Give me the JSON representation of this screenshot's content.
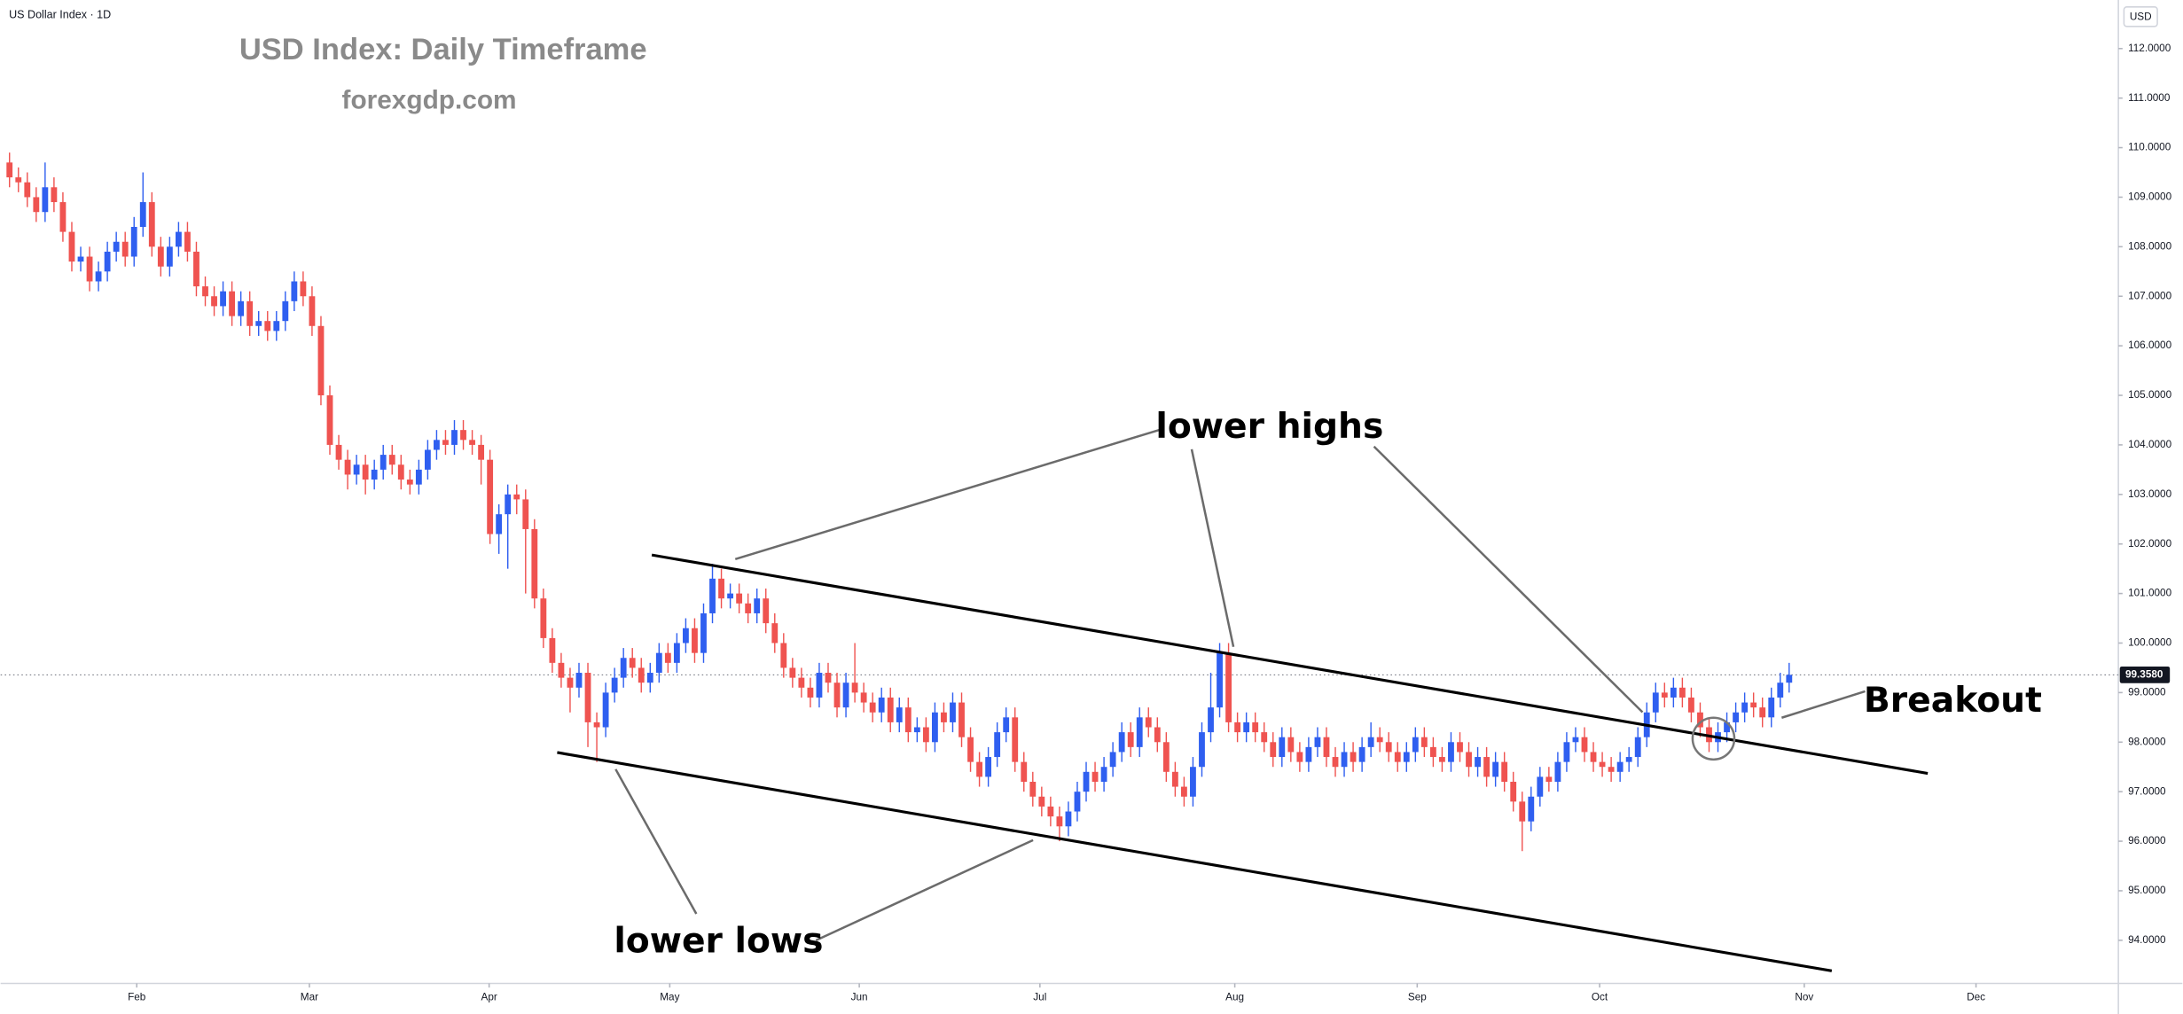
{
  "chart_data": {
    "type": "candlestick",
    "symbol": "US Dollar Index · 1D",
    "title": "USD Index: Daily Timeframe",
    "subtitle": "forexgdp.com",
    "currency": "USD",
    "annotations": [
      "lower highs",
      "lower lows",
      "Breakout"
    ],
    "up_color": "#2f5ff0",
    "down_color": "#ef5350",
    "xlim": [
      -1,
      237
    ],
    "xticks": [
      {
        "value": 14.3,
        "label": "Feb"
      },
      {
        "value": 33.7,
        "label": "Mar"
      },
      {
        "value": 53.9,
        "label": "Apr"
      },
      {
        "value": 74.2,
        "label": "May"
      },
      {
        "value": 95.5,
        "label": "Jun"
      },
      {
        "value": 115.8,
        "label": "Jul"
      },
      {
        "value": 137.7,
        "label": "Aug"
      },
      {
        "value": 158.2,
        "label": "Sep"
      },
      {
        "value": 178.7,
        "label": "Oct"
      },
      {
        "value": 201.7,
        "label": "Nov"
      },
      {
        "value": 221.0,
        "label": "Dec"
      }
    ],
    "ylim": [
      93.13,
      112.98
    ],
    "yticks": [
      {
        "value": 94,
        "label": "94.0000"
      },
      {
        "value": 95,
        "label": "95.0000"
      },
      {
        "value": 96,
        "label": "96.0000"
      },
      {
        "value": 97,
        "label": "97.0000"
      },
      {
        "value": 98,
        "label": "98.0000"
      },
      {
        "value": 99,
        "label": "99.0000"
      },
      {
        "value": 100,
        "label": "100.0000"
      },
      {
        "value": 101,
        "label": "101.0000"
      },
      {
        "value": 102,
        "label": "102.0000"
      },
      {
        "value": 103,
        "label": "103.0000"
      },
      {
        "value": 104,
        "label": "104.0000"
      },
      {
        "value": 105,
        "label": "105.0000"
      },
      {
        "value": 106,
        "label": "106.0000"
      },
      {
        "value": 107,
        "label": "107.0000"
      },
      {
        "value": 108,
        "label": "108.0000"
      },
      {
        "value": 109,
        "label": "109.0000"
      },
      {
        "value": 110,
        "label": "110.0000"
      },
      {
        "value": 111,
        "label": "111.0000"
      },
      {
        "value": 112,
        "label": "112.0000"
      }
    ],
    "last_price": {
      "value": 99.358,
      "label": "99.3580"
    },
    "open": [
      109.7,
      109.4,
      109.3,
      109.0,
      108.7,
      109.2,
      108.9,
      108.3,
      107.7,
      107.8,
      107.3,
      107.5,
      107.9,
      108.1,
      107.8,
      108.4,
      108.9,
      108.0,
      107.6,
      108.0,
      108.3,
      107.9,
      107.2,
      107.0,
      106.8,
      107.1,
      106.6,
      106.9,
      106.4,
      106.5,
      106.3,
      106.5,
      106.9,
      107.3,
      107.0,
      106.4,
      105.0,
      104.0,
      103.7,
      103.4,
      103.6,
      103.3,
      103.5,
      103.8,
      103.6,
      103.3,
      103.2,
      103.5,
      103.9,
      104.1,
      104.0,
      104.3,
      104.1,
      104.0,
      103.7,
      102.2,
      102.6,
      103.0,
      102.9,
      102.3,
      100.9,
      100.1,
      99.6,
      99.3,
      99.1,
      99.4,
      98.4,
      98.3,
      99.0,
      99.3,
      99.7,
      99.5,
      99.2,
      99.4,
      99.8,
      99.6,
      100.0,
      100.3,
      99.8,
      100.6,
      101.3,
      100.9,
      101.0,
      100.8,
      100.6,
      100.9,
      100.4,
      100.0,
      99.5,
      99.3,
      99.1,
      98.9,
      99.4,
      99.2,
      98.7,
      99.2,
      99.0,
      98.8,
      98.6,
      98.9,
      98.4,
      98.7,
      98.2,
      98.3,
      98.0,
      98.6,
      98.4,
      98.8,
      98.1,
      97.6,
      97.3,
      97.7,
      98.2,
      98.5,
      97.6,
      97.2,
      96.9,
      96.7,
      96.5,
      96.3,
      96.6,
      97.0,
      97.4,
      97.2,
      97.5,
      97.8,
      98.2,
      97.9,
      98.5,
      98.3,
      98.0,
      97.4,
      97.1,
      96.9,
      97.5,
      98.2,
      98.7,
      99.8,
      98.4,
      98.2,
      98.4,
      98.2,
      98.0,
      97.7,
      98.1,
      97.8,
      97.6,
      97.9,
      98.1,
      97.7,
      97.5,
      97.8,
      97.6,
      97.9,
      98.1,
      98.0,
      97.8,
      97.6,
      97.8,
      98.1,
      97.9,
      97.7,
      97.6,
      98.0,
      97.8,
      97.5,
      97.7,
      97.3,
      97.6,
      97.2,
      96.8,
      96.4,
      96.9,
      97.3,
      97.2,
      97.6,
      98.0,
      98.1,
      97.8,
      97.6,
      97.5,
      97.4,
      97.6,
      97.7,
      98.1,
      98.6,
      99.0,
      98.9,
      99.1,
      98.9,
      98.6,
      98.3,
      98.0,
      98.2,
      98.4,
      98.6,
      98.8,
      98.7,
      98.5,
      98.9,
      99.2
    ],
    "high": [
      109.9,
      109.6,
      109.5,
      109.2,
      109.7,
      109.4,
      109.1,
      108.5,
      108.0,
      108.0,
      107.7,
      108.1,
      108.3,
      108.3,
      108.6,
      109.5,
      109.1,
      108.2,
      108.2,
      108.5,
      108.5,
      108.1,
      107.4,
      107.2,
      107.3,
      107.3,
      107.1,
      107.1,
      106.7,
      106.7,
      106.7,
      107.1,
      107.5,
      107.5,
      107.2,
      106.6,
      105.2,
      104.2,
      103.9,
      103.8,
      103.8,
      103.7,
      104.0,
      104.0,
      103.8,
      103.5,
      103.7,
      104.1,
      104.3,
      104.3,
      104.5,
      104.5,
      104.3,
      104.2,
      103.9,
      102.8,
      103.2,
      103.2,
      103.1,
      102.5,
      101.1,
      100.3,
      99.8,
      99.5,
      99.6,
      99.6,
      98.6,
      99.2,
      99.5,
      99.9,
      99.9,
      99.7,
      99.6,
      100.0,
      100.0,
      100.2,
      100.5,
      100.5,
      100.8,
      101.6,
      101.5,
      101.2,
      101.2,
      101.0,
      101.1,
      101.1,
      100.6,
      100.2,
      99.7,
      99.5,
      99.3,
      99.6,
      99.6,
      99.4,
      99.4,
      100.0,
      99.2,
      99.0,
      99.1,
      99.1,
      98.9,
      98.9,
      98.5,
      98.5,
      98.8,
      98.8,
      99.0,
      99.0,
      98.3,
      97.8,
      97.9,
      98.4,
      98.7,
      98.7,
      97.8,
      97.4,
      97.1,
      96.9,
      96.7,
      96.8,
      97.2,
      97.6,
      97.6,
      97.7,
      98.0,
      98.4,
      98.4,
      98.7,
      98.7,
      98.5,
      98.2,
      97.6,
      97.3,
      97.7,
      98.4,
      99.4,
      100.0,
      100.0,
      98.6,
      98.6,
      98.6,
      98.4,
      98.2,
      98.3,
      98.3,
      98.0,
      98.1,
      98.3,
      98.3,
      97.9,
      98.0,
      98.0,
      98.1,
      98.4,
      98.3,
      98.2,
      98.0,
      98.0,
      98.3,
      98.3,
      98.1,
      97.9,
      98.2,
      98.2,
      98.0,
      97.9,
      97.9,
      97.8,
      97.8,
      97.4,
      97.0,
      97.1,
      97.5,
      97.5,
      97.8,
      98.2,
      98.3,
      98.3,
      98.0,
      97.8,
      97.7,
      97.8,
      97.9,
      98.3,
      98.8,
      99.2,
      99.2,
      99.3,
      99.3,
      99.1,
      98.8,
      98.5,
      98.4,
      98.6,
      98.8,
      99.0,
      99.0,
      98.9,
      99.1,
      99.4,
      99.6
    ],
    "low": [
      109.2,
      109.1,
      108.8,
      108.5,
      108.5,
      108.7,
      108.1,
      107.5,
      107.5,
      107.1,
      107.1,
      107.3,
      107.7,
      107.6,
      107.6,
      108.2,
      107.8,
      107.4,
      107.4,
      107.8,
      107.7,
      107.0,
      106.8,
      106.6,
      106.6,
      106.4,
      106.4,
      106.2,
      106.2,
      106.1,
      106.1,
      106.3,
      106.7,
      106.8,
      106.2,
      104.8,
      103.8,
      103.5,
      103.1,
      103.2,
      103.0,
      103.1,
      103.3,
      103.4,
      103.1,
      103.0,
      103.0,
      103.3,
      103.7,
      103.8,
      103.8,
      103.9,
      103.8,
      103.2,
      102.0,
      101.8,
      101.5,
      102.6,
      101.0,
      100.7,
      99.9,
      99.4,
      99.1,
      98.6,
      98.9,
      97.9,
      97.6,
      98.1,
      98.8,
      99.1,
      99.3,
      99.0,
      99.0,
      99.2,
      99.4,
      99.4,
      99.8,
      99.6,
      99.6,
      100.4,
      100.7,
      100.7,
      100.6,
      100.4,
      100.4,
      100.2,
      99.8,
      99.3,
      99.1,
      98.9,
      98.7,
      98.7,
      99.0,
      98.5,
      98.5,
      98.8,
      98.6,
      98.4,
      98.4,
      98.2,
      98.2,
      98.0,
      98.0,
      97.8,
      97.8,
      98.2,
      98.2,
      97.9,
      97.4,
      97.1,
      97.1,
      97.5,
      98.0,
      97.4,
      97.0,
      96.7,
      96.5,
      96.3,
      96.0,
      96.1,
      96.4,
      96.8,
      97.0,
      97.0,
      97.3,
      97.6,
      97.7,
      97.7,
      98.1,
      97.8,
      97.2,
      96.9,
      96.7,
      96.7,
      97.3,
      98.0,
      98.5,
      98.2,
      98.0,
      98.0,
      98.0,
      97.8,
      97.5,
      97.5,
      97.6,
      97.4,
      97.4,
      97.7,
      97.5,
      97.3,
      97.3,
      97.4,
      97.4,
      97.7,
      97.8,
      97.6,
      97.4,
      97.4,
      97.6,
      97.7,
      97.5,
      97.4,
      97.4,
      97.6,
      97.3,
      97.3,
      97.1,
      97.1,
      97.0,
      96.6,
      95.8,
      96.2,
      96.7,
      97.0,
      97.0,
      97.4,
      97.8,
      97.6,
      97.4,
      97.3,
      97.2,
      97.2,
      97.4,
      97.5,
      97.9,
      98.4,
      98.7,
      98.7,
      98.7,
      98.4,
      98.1,
      97.8,
      97.8,
      98.0,
      98.2,
      98.4,
      98.5,
      98.3,
      98.3,
      98.7,
      99.0
    ],
    "close": [
      109.4,
      109.3,
      109.0,
      108.7,
      109.2,
      108.9,
      108.3,
      107.7,
      107.8,
      107.3,
      107.5,
      107.9,
      108.1,
      107.8,
      108.4,
      108.9,
      108.0,
      107.6,
      108.0,
      108.3,
      107.9,
      107.2,
      107.0,
      106.8,
      107.1,
      106.6,
      106.9,
      106.4,
      106.5,
      106.3,
      106.5,
      106.9,
      107.3,
      107.0,
      106.4,
      105.0,
      104.0,
      103.7,
      103.4,
      103.6,
      103.3,
      103.5,
      103.8,
      103.6,
      103.3,
      103.2,
      103.5,
      103.9,
      104.1,
      104.0,
      104.3,
      104.1,
      104.0,
      103.7,
      102.2,
      102.6,
      103.0,
      102.9,
      102.3,
      100.9,
      100.1,
      99.6,
      99.3,
      99.1,
      99.4,
      98.4,
      98.3,
      99.0,
      99.3,
      99.7,
      99.5,
      99.2,
      99.4,
      99.8,
      99.6,
      100.0,
      100.3,
      99.8,
      100.6,
      101.3,
      100.9,
      101.0,
      100.8,
      100.6,
      100.9,
      100.4,
      100.0,
      99.5,
      99.3,
      99.1,
      98.9,
      99.4,
      99.2,
      98.7,
      99.2,
      99.0,
      98.8,
      98.6,
      98.9,
      98.4,
      98.7,
      98.2,
      98.3,
      98.0,
      98.6,
      98.4,
      98.8,
      98.1,
      97.6,
      97.3,
      97.7,
      98.2,
      98.5,
      97.6,
      97.2,
      96.9,
      96.7,
      96.5,
      96.3,
      96.6,
      97.0,
      97.4,
      97.2,
      97.5,
      97.8,
      98.2,
      97.9,
      98.5,
      98.3,
      98.0,
      97.4,
      97.1,
      96.9,
      97.5,
      98.2,
      98.7,
      99.8,
      98.4,
      98.2,
      98.4,
      98.2,
      98.0,
      97.7,
      98.1,
      97.8,
      97.6,
      97.9,
      98.1,
      97.7,
      97.5,
      97.8,
      97.6,
      97.9,
      98.1,
      98.0,
      97.8,
      97.6,
      97.8,
      98.1,
      97.9,
      97.7,
      97.6,
      98.0,
      97.8,
      97.5,
      97.7,
      97.3,
      97.6,
      97.2,
      96.8,
      96.4,
      96.9,
      97.3,
      97.2,
      97.6,
      98.0,
      98.1,
      97.8,
      97.6,
      97.5,
      97.4,
      97.6,
      97.7,
      98.1,
      98.6,
      99.0,
      98.9,
      99.1,
      98.9,
      98.6,
      98.3,
      98.0,
      98.2,
      98.4,
      98.6,
      98.8,
      98.7,
      98.5,
      98.9,
      99.2,
      99.358
    ]
  }
}
